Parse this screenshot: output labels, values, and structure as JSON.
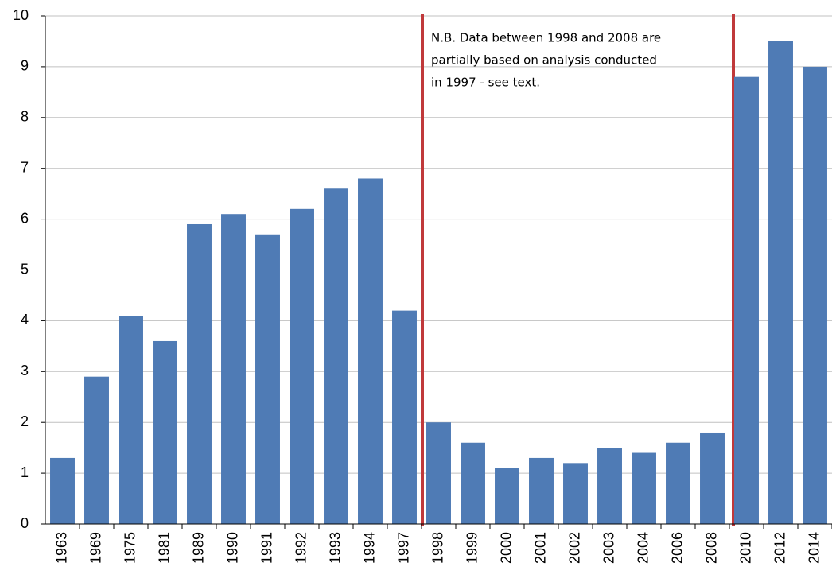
{
  "chart_data": {
    "type": "bar",
    "categories": [
      "1963",
      "1969",
      "1975",
      "1981",
      "1989",
      "1990",
      "1991",
      "1992",
      "1993",
      "1994",
      "1997",
      "1998",
      "1999",
      "2000",
      "2001",
      "2002",
      "2003",
      "2004",
      "2006",
      "2008",
      "2010",
      "2012",
      "2014"
    ],
    "values": [
      1.3,
      2.9,
      4.1,
      3.6,
      5.9,
      6.1,
      5.7,
      6.2,
      6.6,
      6.8,
      4.2,
      2.0,
      1.6,
      1.1,
      1.3,
      1.2,
      1.5,
      1.4,
      1.6,
      1.8,
      8.8,
      9.5,
      9.0
    ],
    "color": "#4f7bb5",
    "ylim": [
      0,
      10
    ],
    "yticks": [
      0,
      1,
      2,
      3,
      4,
      5,
      6,
      7,
      8,
      9,
      10
    ],
    "grid": true,
    "annotation": [
      "N.B. Data between 1998  and 2008 are",
      "partially based on analysis conducted",
      "in 1997 - see text."
    ]
  }
}
